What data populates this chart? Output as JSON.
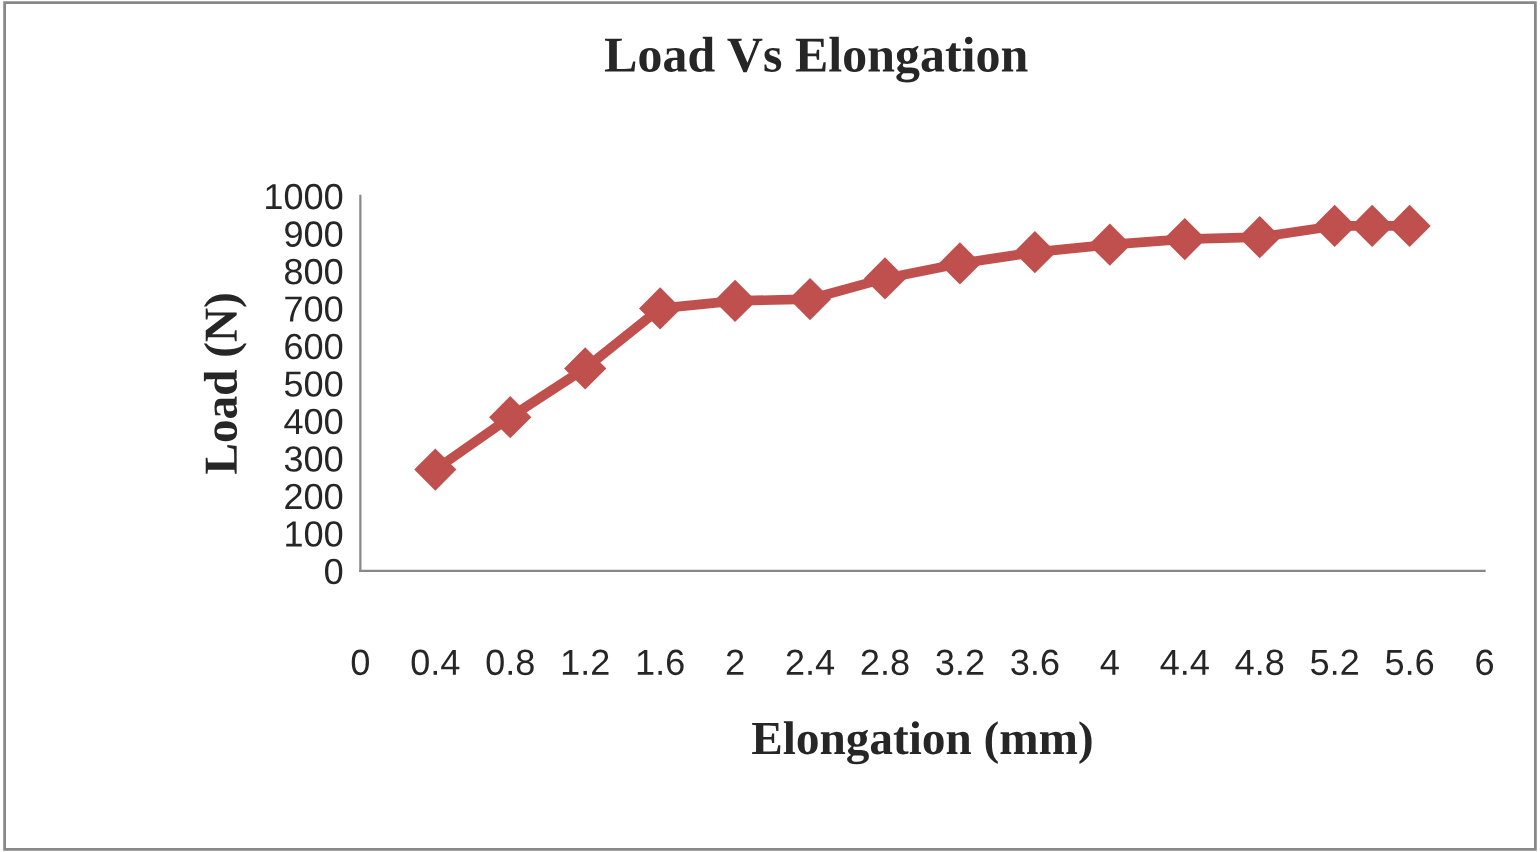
{
  "chart_data": {
    "type": "line",
    "title": "Load Vs Elongation",
    "xlabel": "Elongation (mm)",
    "ylabel": "Load (N)",
    "x": [
      0.4,
      0.8,
      1.2,
      1.6,
      2.0,
      2.4,
      2.8,
      3.2,
      3.6,
      4.0,
      4.4,
      4.8,
      5.2,
      5.4,
      5.6
    ],
    "series": [
      {
        "color": "#c0504d",
        "values": [
          270,
          410,
          540,
          700,
          720,
          725,
          780,
          820,
          850,
          870,
          885,
          890,
          920,
          920,
          920
        ]
      }
    ],
    "xlim": [
      0,
      6
    ],
    "xticks": [
      0,
      0.4,
      0.8,
      1.2,
      1.6,
      2,
      2.4,
      2.8,
      3.2,
      3.6,
      4,
      4.4,
      4.8,
      5.2,
      5.6,
      6
    ],
    "ylim": [
      0,
      1000
    ],
    "yticks": [
      0,
      100,
      200,
      300,
      400,
      500,
      600,
      700,
      800,
      900,
      1000
    ],
    "marker": "diamond",
    "line_style": "solid"
  }
}
